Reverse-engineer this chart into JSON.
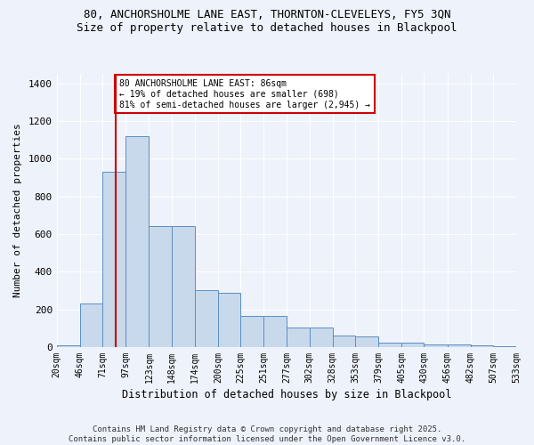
{
  "title_line1": "80, ANCHORSHOLME LANE EAST, THORNTON-CLEVELEYS, FY5 3QN",
  "title_line2": "Size of property relative to detached houses in Blackpool",
  "xlabel": "Distribution of detached houses by size in Blackpool",
  "ylabel": "Number of detached properties",
  "bar_color": "#c9d9ec",
  "bar_edge_color": "#5a8fc2",
  "background_color": "#eef2fa",
  "grid_color": "#ffffff",
  "vline_color": "#cc0000",
  "vline_x": 86,
  "annotation_text": "80 ANCHORSHOLME LANE EAST: 86sqm\n← 19% of detached houses are smaller (698)\n81% of semi-detached houses are larger (2,945) →",
  "bin_edges": [
    20,
    46,
    71,
    97,
    123,
    148,
    174,
    200,
    225,
    251,
    277,
    302,
    328,
    353,
    379,
    405,
    430,
    456,
    482,
    507,
    533
  ],
  "bar_heights": [
    10,
    230,
    930,
    1120,
    640,
    640,
    300,
    290,
    165,
    165,
    105,
    105,
    60,
    55,
    25,
    25,
    15,
    15,
    10,
    5
  ],
  "ylim": [
    0,
    1450
  ],
  "yticks": [
    0,
    200,
    400,
    600,
    800,
    1000,
    1200,
    1400
  ],
  "footnote1": "Contains HM Land Registry data © Crown copyright and database right 2025.",
  "footnote2": "Contains public sector information licensed under the Open Government Licence v3.0."
}
